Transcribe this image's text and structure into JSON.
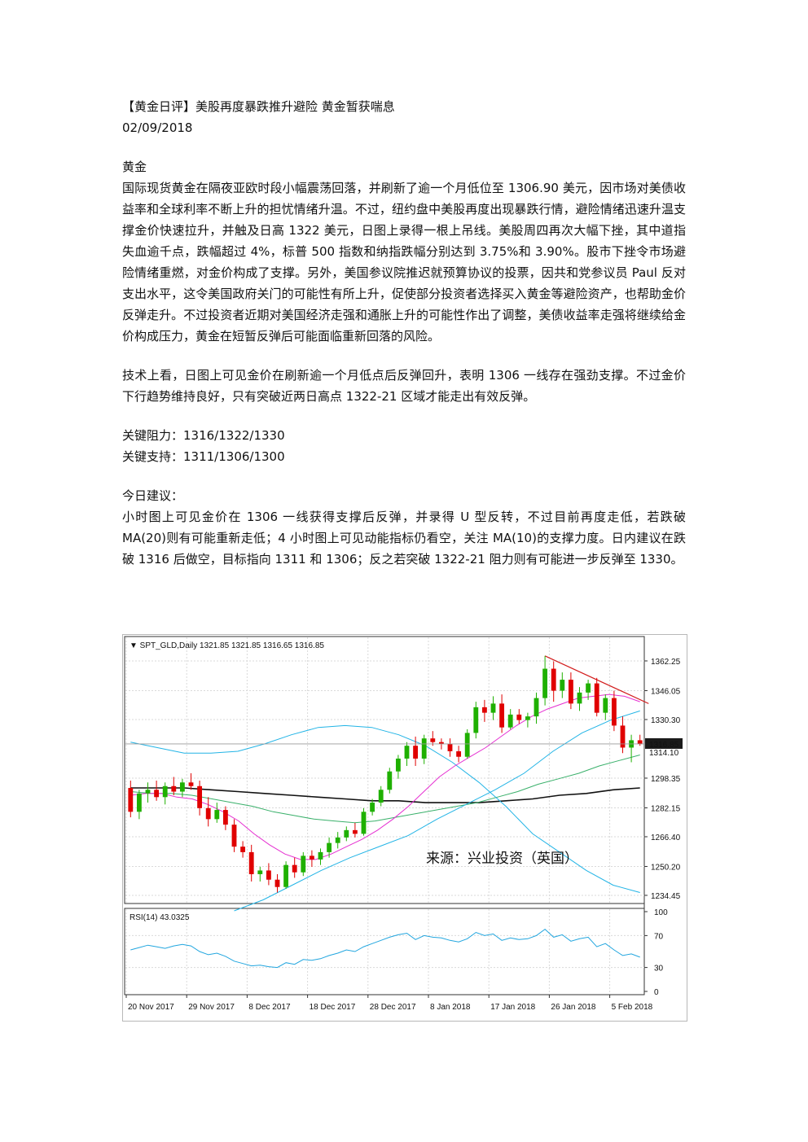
{
  "article": {
    "title": "【黄金日评】美股再度暴跌推升避险 黄金暂获喘息",
    "date": "02/09/2018",
    "section": "黄金",
    "para1": "国际现货黄金在隔夜亚欧时段小幅震荡回落，并刷新了逾一个月低位至 1306.90 美元，因市场对美债收益率和全球利率不断上升的担忧情绪升温。不过，纽约盘中美股再度出现暴跌行情，避险情绪迅速升温支撑金价快速拉升，并触及日高 1322 美元，日图上录得一根上吊线。美股周四再次大幅下挫，其中道指失血逾千点，跌幅超过 4%，标普 500 指数和纳指跌幅分别达到 3.75%和 3.90%。股市下挫令市场避险情绪重燃，对金价构成了支撑。另外，美国参议院推迟就预算协议的投票，因共和党参议员 Paul 反对支出水平，这令美国政府关门的可能性有所上升，促使部分投资者选择买入黄金等避险资产，也帮助金价反弹走升。不过投资者近期对美国经济走强和通胀上升的可能性作出了调整，美债收益率走强将继续给金价构成压力，黄金在短暂反弹后可能面临重新回落的风险。",
    "para2": "技术上看，日图上可见金价在刷新逾一个月低点后反弹回升，表明 1306 一线存在强劲支撑。不过金价下行趋势维持良好，只有突破近两日高点 1322-21 区域才能走出有效反弹。",
    "resistance": "关键阻力：1316/1322/1330",
    "support": "关键支持：1311/1306/1300",
    "advice_title": "今日建议：",
    "advice": "小时图上可见金价在 1306 一线获得支撑后反弹，并录得 U 型反转，不过目前再度走低，若跌破 MA(20)则有可能重新走低；4 小时图上可见动能指标仍看空，关注 MA(10)的支撑力度。日内建议在跌破 1316 后做空，目标指向 1311 和 1306；反之若突破 1322-21 阻力则有可能进一步反弹至 1330。"
  },
  "chart_data": {
    "type": "candlestick",
    "symbol_header": "SPT_GLD,Daily  1321.85 1321.85 1316.65 1316.85",
    "current_price_label": "1316.85",
    "second_price_label": "1314.10",
    "source_label": "来源：兴业投资（英国）",
    "price_ticks": [
      "1362.25",
      "1346.05",
      "1330.30",
      "1298.35",
      "1282.15",
      "1266.40",
      "1250.20",
      "1234.45"
    ],
    "price_tick_values": [
      1362.25,
      1346.05,
      1330.3,
      1298.35,
      1282.15,
      1266.4,
      1250.2,
      1234.45
    ],
    "ylim": [
      1230,
      1372
    ],
    "x_labels": [
      "20 Nov 2017",
      "29 Nov 2017",
      "8 Dec 2017",
      "18 Dec 2017",
      "28 Dec 2017",
      "8 Jan 2018",
      "17 Jan 2018",
      "26 Jan 2018",
      "5 Feb 2018"
    ],
    "x_label_bars": [
      0,
      7,
      14,
      21,
      28,
      35,
      42,
      49,
      56
    ],
    "ohlc": [
      [
        1293,
        1297,
        1277,
        1280
      ],
      [
        1280,
        1292,
        1276,
        1290
      ],
      [
        1290,
        1296,
        1285,
        1292
      ],
      [
        1292,
        1297,
        1286,
        1288
      ],
      [
        1288,
        1296,
        1284,
        1294
      ],
      [
        1294,
        1299,
        1289,
        1291
      ],
      [
        1291,
        1298,
        1288,
        1296
      ],
      [
        1296,
        1301,
        1292,
        1294
      ],
      [
        1294,
        1297,
        1278,
        1282
      ],
      [
        1282,
        1288,
        1272,
        1276
      ],
      [
        1276,
        1285,
        1274,
        1281
      ],
      [
        1281,
        1283,
        1270,
        1273
      ],
      [
        1273,
        1276,
        1258,
        1261
      ],
      [
        1261,
        1264,
        1255,
        1258
      ],
      [
        1258,
        1262,
        1242,
        1246
      ],
      [
        1246,
        1250,
        1242,
        1248
      ],
      [
        1248,
        1252,
        1240,
        1243
      ],
      [
        1243,
        1246,
        1236,
        1239
      ],
      [
        1239,
        1253,
        1238,
        1251
      ],
      [
        1251,
        1255,
        1244,
        1247
      ],
      [
        1247,
        1258,
        1245,
        1256
      ],
      [
        1256,
        1259,
        1250,
        1254
      ],
      [
        1254,
        1260,
        1251,
        1258
      ],
      [
        1258,
        1266,
        1255,
        1263
      ],
      [
        1263,
        1269,
        1260,
        1266
      ],
      [
        1266,
        1272,
        1264,
        1270
      ],
      [
        1270,
        1274,
        1266,
        1268
      ],
      [
        1268,
        1282,
        1267,
        1280
      ],
      [
        1280,
        1287,
        1278,
        1285
      ],
      [
        1285,
        1294,
        1283,
        1292
      ],
      [
        1292,
        1304,
        1290,
        1302
      ],
      [
        1302,
        1311,
        1298,
        1309
      ],
      [
        1309,
        1318,
        1305,
        1316
      ],
      [
        1316,
        1321,
        1305,
        1309
      ],
      [
        1309,
        1322,
        1306,
        1320
      ],
      [
        1320,
        1324,
        1316,
        1318
      ],
      [
        1318,
        1320,
        1314,
        1317
      ],
      [
        1317,
        1320,
        1310,
        1313
      ],
      [
        1313,
        1316,
        1307,
        1310
      ],
      [
        1310,
        1325,
        1309,
        1323
      ],
      [
        1323,
        1340,
        1320,
        1337
      ],
      [
        1337,
        1341,
        1329,
        1334
      ],
      [
        1334,
        1343,
        1330,
        1339
      ],
      [
        1339,
        1344,
        1323,
        1326
      ],
      [
        1326,
        1336,
        1325,
        1333
      ],
      [
        1333,
        1336,
        1328,
        1330
      ],
      [
        1330,
        1334,
        1326,
        1332
      ],
      [
        1332,
        1345,
        1328,
        1342
      ],
      [
        1342,
        1365,
        1338,
        1358
      ],
      [
        1358,
        1362,
        1340,
        1346
      ],
      [
        1346,
        1356,
        1342,
        1352
      ],
      [
        1352,
        1356,
        1336,
        1339
      ],
      [
        1339,
        1348,
        1335,
        1345
      ],
      [
        1345,
        1352,
        1341,
        1350
      ],
      [
        1350,
        1353,
        1332,
        1334
      ],
      [
        1334,
        1344,
        1330,
        1342
      ],
      [
        1342,
        1346,
        1324,
        1327
      ],
      [
        1327,
        1332,
        1312,
        1315
      ],
      [
        1315,
        1322,
        1307,
        1319
      ],
      [
        1319,
        1322,
        1316,
        1317
      ]
    ],
    "bollinger_upper": [
      1318,
      1315,
      1312,
      1312,
      1313,
      1317,
      1322,
      1326,
      1327,
      1326,
      1322,
      1316,
      1307,
      1296,
      1283,
      1268,
      1258,
      1248,
      1240,
      1236
    ],
    "bollinger_lower": [
      1226,
      1232,
      1240,
      1248,
      1255,
      1261,
      1267,
      1276,
      1284,
      1292,
      1301,
      1313,
      1323,
      1330,
      1335
    ],
    "sma20": [
      1289,
      1290,
      1290,
      1288,
      1287,
      1284,
      1280,
      1275,
      1268,
      1262,
      1257,
      1254,
      1254,
      1257,
      1261,
      1265,
      1270,
      1276,
      1283,
      1291,
      1299,
      1305,
      1310,
      1315,
      1321,
      1327,
      1332,
      1336,
      1339,
      1342,
      1343,
      1344,
      1343,
      1340
    ],
    "sma100": [
      1291,
      1290,
      1290,
      1289,
      1287,
      1285,
      1283,
      1280,
      1278,
      1276,
      1275,
      1274,
      1275,
      1277,
      1279,
      1281,
      1283,
      1285,
      1288,
      1291,
      1295,
      1298,
      1301,
      1305,
      1308,
      1311
    ],
    "sma200": [
      1293,
      1293,
      1293,
      1292,
      1291,
      1290,
      1289,
      1288,
      1287,
      1286,
      1286,
      1285,
      1285,
      1285,
      1286,
      1287,
      1289,
      1290,
      1292,
      1293
    ],
    "trendline": [
      [
        48,
        1365
      ],
      [
        60,
        1339
      ]
    ],
    "rsi_header": "RSI(14) 43.0325",
    "rsi_ticks": [
      "100",
      "70",
      "30",
      "0"
    ],
    "rsi_tick_values": [
      100,
      70,
      30,
      0
    ],
    "rsi": [
      52,
      55,
      58,
      56,
      54,
      57,
      59,
      57,
      50,
      46,
      48,
      44,
      38,
      35,
      32,
      33,
      31,
      30,
      36,
      34,
      40,
      39,
      41,
      45,
      48,
      52,
      50,
      56,
      60,
      64,
      68,
      71,
      73,
      65,
      70,
      68,
      67,
      64,
      62,
      66,
      74,
      70,
      72,
      64,
      67,
      65,
      66,
      70,
      78,
      68,
      71,
      63,
      66,
      68,
      56,
      60,
      52,
      45,
      47,
      43
    ],
    "colors": {
      "bull": "#1fb000",
      "bear": "#e00000",
      "bollinger": "#22b4e6",
      "sma20": "#e52fd1",
      "sma100": "#39b06a",
      "sma200": "#111111",
      "trend": "#d21c1c",
      "rsi": "#22a6df",
      "grid": "#d9d9d9"
    }
  }
}
